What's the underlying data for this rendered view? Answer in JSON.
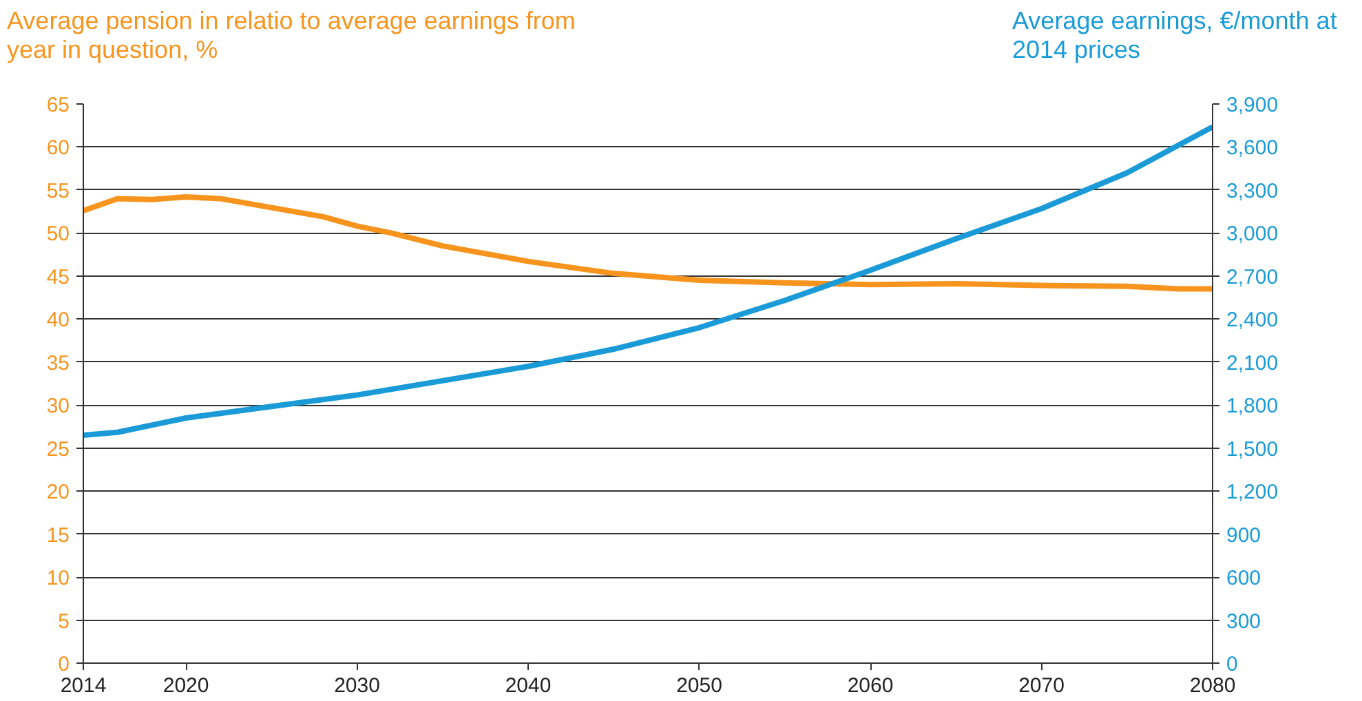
{
  "chart_data": {
    "type": "line",
    "ylabel": "Average pension in relatio to average earnings from year in question, %",
    "y2label": "Average earnings, €/month at 2014 prices",
    "series": [
      {
        "color": "#f7941d",
        "x": [
          2014,
          2016,
          2018,
          2020,
          2022,
          2024,
          2026,
          2028,
          2030,
          2032,
          2035,
          2040,
          2045,
          2050,
          2055,
          2060,
          2065,
          2070,
          2075,
          2078,
          2080
        ],
        "values": [
          52.6,
          54.0,
          53.9,
          54.2,
          54.0,
          53.3,
          52.6,
          51.9,
          50.8,
          50.0,
          48.5,
          46.7,
          45.3,
          44.5,
          44.2,
          44.0,
          44.1,
          43.9,
          43.8,
          43.5,
          43.5
        ]
      },
      {
        "color": "#1a9bd7",
        "axis": "y2",
        "x": [
          2014,
          2016,
          2018,
          2020,
          2025,
          2030,
          2035,
          2040,
          2045,
          2050,
          2055,
          2060,
          2065,
          2070,
          2075,
          2080
        ],
        "values": [
          1590,
          1610,
          1660,
          1710,
          1790,
          1870,
          1970,
          2070,
          2190,
          2340,
          2530,
          2740,
          2960,
          3170,
          3420,
          3740
        ]
      }
    ],
    "xlim": [
      2014,
      2080
    ],
    "xticks": [
      2014,
      2020,
      2030,
      2040,
      2050,
      2060,
      2070,
      2080
    ],
    "ylim": [
      0,
      65
    ],
    "yticks": [
      0,
      5,
      10,
      15,
      20,
      25,
      30,
      35,
      40,
      45,
      50,
      55,
      60,
      65
    ],
    "y2lim": [
      0,
      3900
    ],
    "y2ticks": [
      0,
      {
        "value": 300,
        "label": "300"
      },
      {
        "value": 600,
        "label": "600"
      },
      {
        "value": 900,
        "label": "900"
      },
      {
        "value": 1200,
        "label": "1,200"
      },
      {
        "value": 1500,
        "label": "1,500"
      },
      {
        "value": 1800,
        "label": "1,800"
      },
      {
        "value": 2100,
        "label": "2,100"
      },
      {
        "value": 2400,
        "label": "2,400"
      },
      {
        "value": 2700,
        "label": "2,700"
      },
      {
        "value": 3000,
        "label": "3,000"
      },
      {
        "value": 3300,
        "label": "3,300"
      },
      {
        "value": 3600,
        "label": "3,600"
      },
      {
        "value": 3900,
        "label": "3,900"
      }
    ],
    "grid": "y",
    "marker": "none",
    "line_style": "solid"
  }
}
